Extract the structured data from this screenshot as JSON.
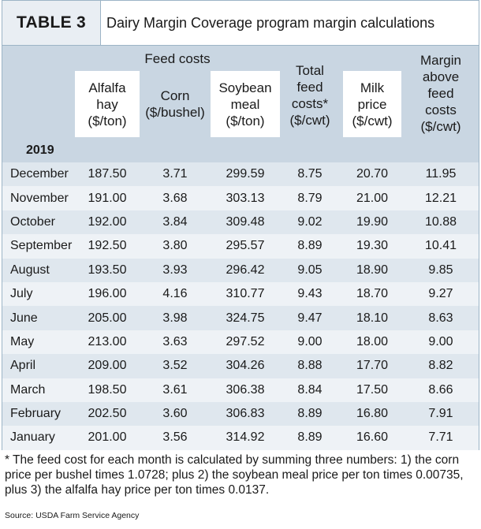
{
  "header": {
    "table_label": "TABLE 3",
    "table_title": "Dairy Margin Coverage program margin calculations"
  },
  "columns": {
    "feed_costs_group": "Feed costs",
    "alfalfa": [
      "Alfalfa",
      "hay",
      "($/ton)"
    ],
    "corn": [
      "Corn",
      "($/bushel)"
    ],
    "soybean": [
      "Soybean",
      "meal",
      "($/ton)"
    ],
    "total_feed": [
      "Total",
      "feed",
      "costs*",
      "($/cwt)"
    ],
    "milk": [
      "Milk",
      "price",
      "($/cwt)"
    ],
    "margin": [
      "Margin",
      "above",
      "feed",
      "costs",
      "($/cwt)"
    ]
  },
  "year": "2019",
  "rows": [
    {
      "month": "December",
      "alfalfa": "187.50",
      "corn": "3.71",
      "soybean": "299.59",
      "total": "8.75",
      "milk": "20.70",
      "margin": "11.95"
    },
    {
      "month": "November",
      "alfalfa": "191.00",
      "corn": "3.68",
      "soybean": "303.13",
      "total": "8.79",
      "milk": "21.00",
      "margin": "12.21"
    },
    {
      "month": "October",
      "alfalfa": "192.00",
      "corn": "3.84",
      "soybean": "309.48",
      "total": "9.02",
      "milk": "19.90",
      "margin": "10.88"
    },
    {
      "month": "September",
      "alfalfa": "192.50",
      "corn": "3.80",
      "soybean": "295.57",
      "total": "8.89",
      "milk": "19.30",
      "margin": "10.41"
    },
    {
      "month": "August",
      "alfalfa": "193.50",
      "corn": "3.93",
      "soybean": "296.42",
      "total": "9.05",
      "milk": "18.90",
      "margin": "9.85"
    },
    {
      "month": "July",
      "alfalfa": "196.00",
      "corn": "4.16",
      "soybean": "310.77",
      "total": "9.43",
      "milk": "18.70",
      "margin": "9.27"
    },
    {
      "month": "June",
      "alfalfa": "205.00",
      "corn": "3.98",
      "soybean": "324.75",
      "total": "9.47",
      "milk": "18.10",
      "margin": "8.63"
    },
    {
      "month": "May",
      "alfalfa": "213.00",
      "corn": "3.63",
      "soybean": "297.52",
      "total": "9.00",
      "milk": "18.00",
      "margin": "9.00"
    },
    {
      "month": "April",
      "alfalfa": "209.00",
      "corn": "3.52",
      "soybean": "304.26",
      "total": "8.88",
      "milk": "17.70",
      "margin": "8.82"
    },
    {
      "month": "March",
      "alfalfa": "198.50",
      "corn": "3.61",
      "soybean": "306.38",
      "total": "8.84",
      "milk": "17.50",
      "margin": "8.66"
    },
    {
      "month": "February",
      "alfalfa": "202.50",
      "corn": "3.60",
      "soybean": "306.83",
      "total": "8.89",
      "milk": "16.80",
      "margin": "7.91"
    },
    {
      "month": "January",
      "alfalfa": "201.00",
      "corn": "3.56",
      "soybean": "314.92",
      "total": "8.89",
      "milk": "16.60",
      "margin": "7.71"
    }
  ],
  "footnote": "* The feed cost for each month is calculated by summing three numbers: 1) the corn price per bushel times 1.0728; plus 2) the soybean meal price per ton times 0.00735, plus 3) the alfalfa hay price per ton times 0.0137.",
  "source": "Source: USDA Farm Service Agency",
  "colors": {
    "header_blue": "#c9d6e2",
    "row_alt": "#dfe7ee",
    "row_light": "#eef2f6",
    "border": "#9cb4c6"
  }
}
